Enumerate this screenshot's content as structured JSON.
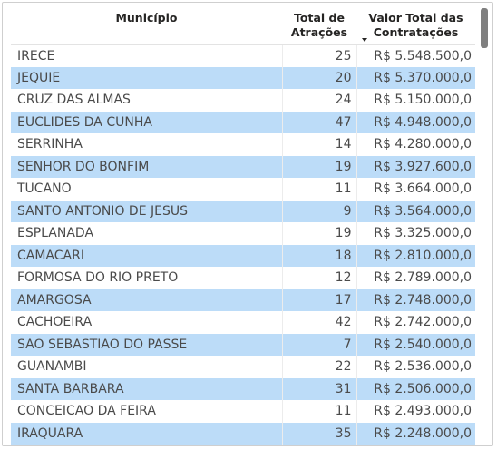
{
  "table": {
    "columns": [
      "Município",
      "Total de Atrações",
      "Valor Total das Contratações"
    ],
    "sort": {
      "column": "Valor Total das Contratações",
      "direction": "descending"
    },
    "rows": [
      {
        "municipio": "IRECE",
        "atracoes": "25",
        "valor": "R$ 5.548.500,0"
      },
      {
        "municipio": "JEQUIE",
        "atracoes": "20",
        "valor": "R$ 5.370.000,0"
      },
      {
        "municipio": "CRUZ DAS ALMAS",
        "atracoes": "24",
        "valor": "R$ 5.150.000,0"
      },
      {
        "municipio": "EUCLIDES DA CUNHA",
        "atracoes": "47",
        "valor": "R$ 4.948.000,0"
      },
      {
        "municipio": "SERRINHA",
        "atracoes": "14",
        "valor": "R$ 4.280.000,0"
      },
      {
        "municipio": "SENHOR DO BONFIM",
        "atracoes": "19",
        "valor": "R$ 3.927.600,0"
      },
      {
        "municipio": "TUCANO",
        "atracoes": "11",
        "valor": "R$ 3.664.000,0"
      },
      {
        "municipio": "SANTO ANTONIO DE JESUS",
        "atracoes": "9",
        "valor": "R$ 3.564.000,0"
      },
      {
        "municipio": "ESPLANADA",
        "atracoes": "19",
        "valor": "R$ 3.325.000,0"
      },
      {
        "municipio": "CAMACARI",
        "atracoes": "18",
        "valor": "R$ 2.810.000,0"
      },
      {
        "municipio": "FORMOSA DO RIO PRETO",
        "atracoes": "12",
        "valor": "R$ 2.789.000,0"
      },
      {
        "municipio": "AMARGOSA",
        "atracoes": "17",
        "valor": "R$ 2.748.000,0"
      },
      {
        "municipio": "CACHOEIRA",
        "atracoes": "42",
        "valor": "R$ 2.742.000,0"
      },
      {
        "municipio": "SAO SEBASTIAO DO PASSE",
        "atracoes": "7",
        "valor": "R$ 2.540.000,0"
      },
      {
        "municipio": "GUANAMBI",
        "atracoes": "22",
        "valor": "R$ 2.536.000,0"
      },
      {
        "municipio": "SANTA BARBARA",
        "atracoes": "31",
        "valor": "R$ 2.506.000,0"
      },
      {
        "municipio": "CONCEICAO DA FEIRA",
        "atracoes": "11",
        "valor": "R$ 2.493.000,0"
      },
      {
        "municipio": "IRAQUARA",
        "atracoes": "35",
        "valor": "R$ 2.248.000,0"
      }
    ]
  },
  "colors": {
    "band": "#bcdcf8",
    "text": "#4a4a4a",
    "header_text": "#252423",
    "scroll_thumb": "#7f7f7f"
  },
  "icons": {
    "sort": "sort-descending-arrow",
    "scroll": "scrollbar-thumb"
  }
}
